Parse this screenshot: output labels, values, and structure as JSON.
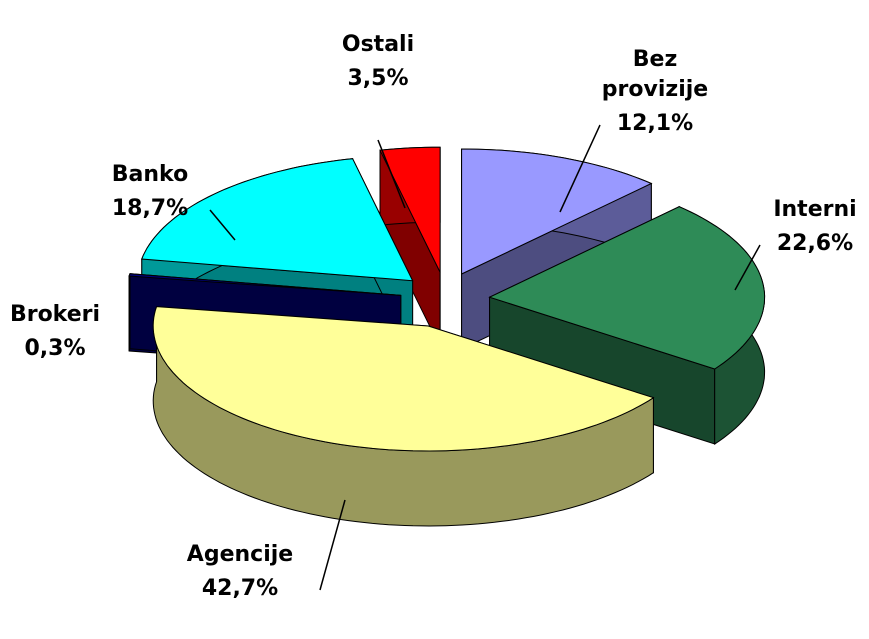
{
  "chart_data": {
    "type": "pie",
    "categories": [
      "Bez provizije",
      "Interni",
      "Agencije",
      "Brokeri",
      "Banko",
      "Ostali"
    ],
    "values": [
      12.1,
      22.6,
      42.7,
      0.3,
      18.7,
      3.5
    ],
    "value_labels": [
      "12,1%",
      "22,6%",
      "42,7%",
      "0,3%",
      "18,7%",
      "3,5%"
    ],
    "colors": [
      "#9999ff",
      "#2e8b57",
      "#ffff99",
      "#000080",
      "#00ffff",
      "#ff0000"
    ],
    "style": "3d-exploded"
  }
}
